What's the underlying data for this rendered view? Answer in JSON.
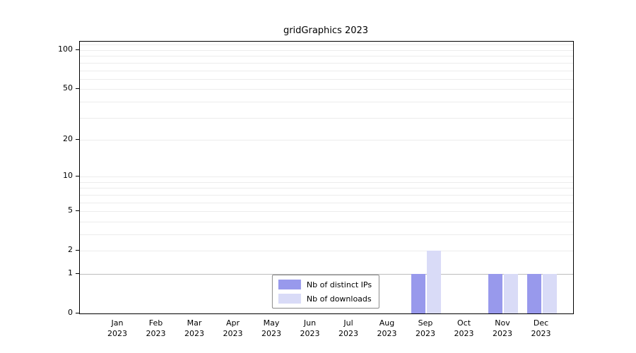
{
  "chart_data": {
    "type": "bar",
    "title": "gridGraphics 2023",
    "categories": [
      "Jan",
      "Feb",
      "Mar",
      "Apr",
      "May",
      "Jun",
      "Jul",
      "Aug",
      "Sep",
      "Oct",
      "Nov",
      "Dec"
    ],
    "category_year": "2023",
    "series": [
      {
        "name": "Nb of distinct IPs",
        "color": "#9899ec",
        "values": [
          0,
          0,
          0,
          0,
          0,
          0,
          0,
          0,
          1,
          0,
          1,
          1
        ]
      },
      {
        "name": "Nb of downloads",
        "color": "#d9dbf7",
        "values": [
          0,
          0,
          0,
          0,
          0,
          0,
          0,
          0,
          2,
          0,
          1,
          1
        ]
      }
    ],
    "yscale": "log1p",
    "yticks": [
      0,
      1,
      2,
      5,
      10,
      20,
      50,
      100
    ],
    "minor_gridlines": [
      1,
      2,
      3,
      4,
      5,
      6,
      7,
      8,
      9,
      10,
      20,
      30,
      40,
      50,
      60,
      70,
      80,
      90,
      100,
      110
    ],
    "ylim": [
      0,
      116
    ],
    "grid": true,
    "legend_position": "bottom-center"
  },
  "colors": {
    "grid_minor": "#ececec",
    "grid_major": "#bdbdbd",
    "frame": "#000000",
    "background": "#ffffff"
  }
}
